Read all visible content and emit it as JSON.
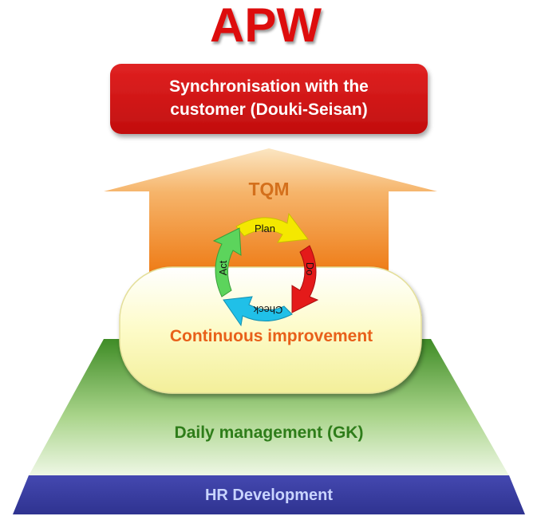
{
  "title": "APW",
  "top_box": {
    "line1": "Synchronisation with the",
    "line2": "customer (Douki-Seisan)"
  },
  "arrow_label": "TQM",
  "pdca": {
    "plan": "Plan",
    "do": "Do",
    "check": "Check",
    "act": "Act"
  },
  "continuous_improvement": "Continuous improvement",
  "daily_management": "Daily management (GK)",
  "hr_development": "HR Development",
  "colors": {
    "title_red": "#dd1111",
    "box_red": "#d81818",
    "arrow_orange": "#f08a24",
    "tqm_text": "#d4701c",
    "ci_text": "#e8601a",
    "pyramid_green": "#3e8f2a",
    "gk_text": "#2e7d1a",
    "hr_blue": "#3a3fa3",
    "hr_text": "#c9d4ff",
    "plan_yellow": "#f4e800",
    "do_red": "#e41a1a",
    "check_cyan": "#20c0e8",
    "act_green": "#5cd45c"
  }
}
